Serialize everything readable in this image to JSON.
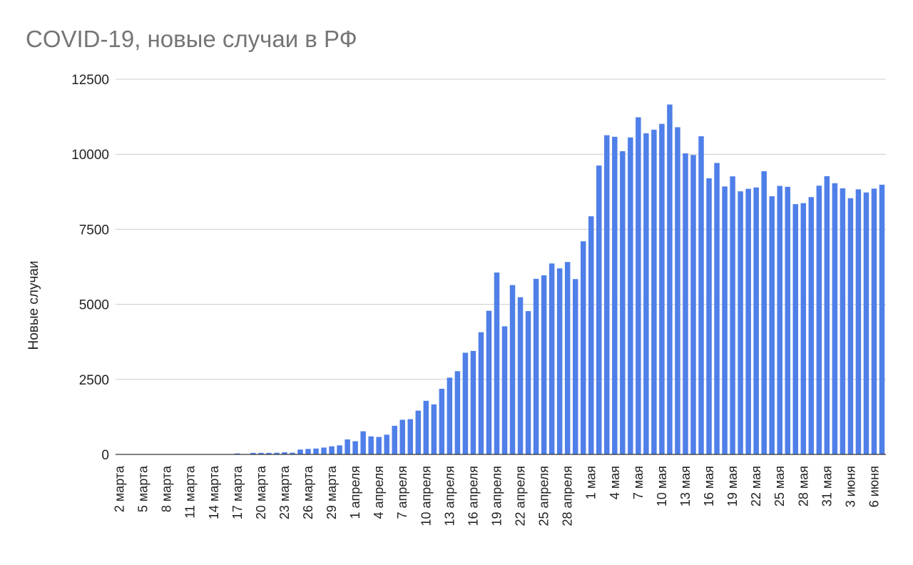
{
  "chart_data": {
    "type": "bar",
    "title": "COVID-19, новые случаи в РФ",
    "xlabel": "",
    "ylabel": "Новые случаи",
    "ylim": [
      0,
      12500
    ],
    "yticks": [
      0,
      2500,
      5000,
      7500,
      10000,
      12500
    ],
    "grid": true,
    "legend": "none",
    "bar_color": "#4f7fe8",
    "categories": [
      "2 марта",
      "3 марта",
      "4 марта",
      "5 марта",
      "6 марта",
      "7 марта",
      "8 марта",
      "9 марта",
      "10 марта",
      "11 марта",
      "12 марта",
      "13 марта",
      "14 марта",
      "15 марта",
      "16 марта",
      "17 марта",
      "18 марта",
      "19 марта",
      "20 марта",
      "21 марта",
      "22 марта",
      "23 марта",
      "24 марта",
      "25 марта",
      "26 марта",
      "27 марта",
      "28 марта",
      "29 марта",
      "30 марта",
      "31 марта",
      "1 апреля",
      "2 апреля",
      "3 апреля",
      "4 апреля",
      "5 апреля",
      "6 апреля",
      "7 апреля",
      "8 апреля",
      "9 апреля",
      "10 апреля",
      "11 апреля",
      "12 апреля",
      "13 апреля",
      "14 апреля",
      "15 апреля",
      "16 апреля",
      "17 апреля",
      "18 апреля",
      "19 апреля",
      "20 апреля",
      "21 апреля",
      "22 апреля",
      "23 апреля",
      "24 апреля",
      "25 апреля",
      "26 апреля",
      "27 апреля",
      "28 апреля",
      "29 апреля",
      "30 апреля",
      "1 мая",
      "2 мая",
      "3 мая",
      "4 мая",
      "5 мая",
      "6 мая",
      "7 мая",
      "8 мая",
      "9 мая",
      "10 мая",
      "11 мая",
      "12 мая",
      "13 мая",
      "14 мая",
      "15 мая",
      "16 мая",
      "17 мая",
      "18 мая",
      "19 мая",
      "20 мая",
      "21 мая",
      "22 мая",
      "23 мая",
      "24 мая",
      "25 мая",
      "26 мая",
      "27 мая",
      "28 мая",
      "29 мая",
      "30 мая",
      "31 мая",
      "1 июня",
      "2 июня",
      "3 июня",
      "4 июня",
      "5 июня",
      "6 июня",
      "7 июня"
    ],
    "visible_tick_labels": [
      "2 марта",
      "5 марта",
      "8 марта",
      "11 марта",
      "14 марта",
      "17 марта",
      "20 марта",
      "23 марта",
      "26 марта",
      "29 марта",
      "1 апреля",
      "4 апреля",
      "7 апреля",
      "10 апреля",
      "13 апреля",
      "16 апреля",
      "19 апреля",
      "22 апреля",
      "25 апреля",
      "28 апреля",
      "1 мая",
      "4 мая",
      "7 мая",
      "10 мая",
      "13 мая",
      "16 мая",
      "19 мая",
      "22 мая",
      "25 мая",
      "28 мая",
      "31 мая",
      "3 июня",
      "6 июня"
    ],
    "values": [
      3,
      0,
      0,
      0,
      0,
      0,
      0,
      0,
      0,
      0,
      0,
      0,
      0,
      0,
      0,
      34,
      3,
      52,
      53,
      53,
      57,
      71,
      57,
      163,
      182,
      196,
      228,
      270,
      302,
      500,
      440,
      771,
      601,
      582,
      658,
      954,
      1154,
      1175,
      1459,
      1786,
      1667,
      2186,
      2558,
      2774,
      3388,
      3448,
      4070,
      4785,
      6060,
      4268,
      5642,
      5236,
      4774,
      5849,
      5966,
      6361,
      6198,
      6411,
      5841,
      7099,
      7933,
      9623,
      10633,
      10581,
      10102,
      10559,
      11231,
      10699,
      10817,
      11012,
      11656,
      10899,
      10028,
      9974,
      10598,
      9200,
      9709,
      8926,
      9263,
      8764,
      8849,
      8894,
      9434,
      8599,
      8946,
      8915,
      8338,
      8371,
      8572,
      8952,
      9268,
      9035,
      8863,
      8536,
      8831,
      8726,
      8855,
      8985
    ]
  }
}
